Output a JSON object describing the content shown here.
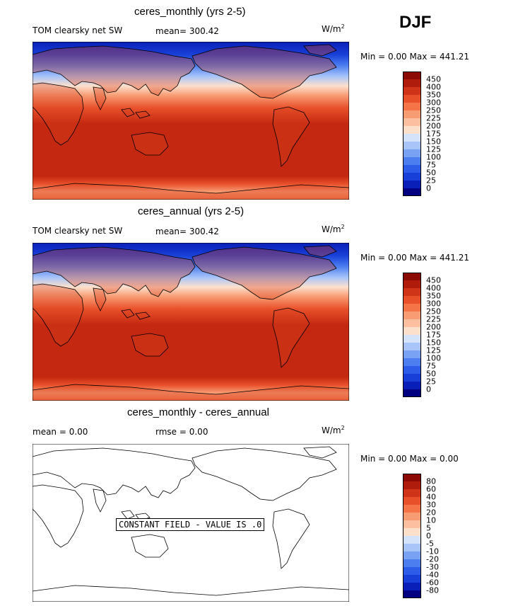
{
  "season": "DJF",
  "panels": [
    {
      "title": "ceres_monthly (yrs 2-5)",
      "variable": "TOM clearsky net SW",
      "mean_label": "mean= 300.42",
      "units": "W/m",
      "units_sup": "2",
      "minmax": "Min =    0.00 Max = 441.21",
      "colorbar_labels": [
        "450",
        "400",
        "350",
        "300",
        "250",
        "225",
        "200",
        "175",
        "150",
        "125",
        "100",
        "75",
        "50",
        "25",
        "0"
      ]
    },
    {
      "title": "ceres_annual (yrs 2-5)",
      "variable": "TOM clearsky net SW",
      "mean_label": "mean= 300.42",
      "units": "W/m",
      "units_sup": "2",
      "minmax": "Min =    0.00 Max = 441.21",
      "colorbar_labels": [
        "450",
        "400",
        "350",
        "300",
        "250",
        "225",
        "200",
        "175",
        "150",
        "125",
        "100",
        "75",
        "50",
        "25",
        "0"
      ]
    },
    {
      "title": "ceres_monthly - ceres_annual",
      "mean_label": "mean =    0.00",
      "rmse_label": "rmse =    0.00",
      "units": "W/m",
      "units_sup": "2",
      "minmax": "Min =    0.00 Max =    0.00",
      "constant_field": "CONSTANT FIELD - VALUE IS .0",
      "colorbar_labels": [
        "80",
        "60",
        "40",
        "30",
        "20",
        "10",
        "5",
        "0",
        "-5",
        "-10",
        "-20",
        "-30",
        "-40",
        "-60",
        "-80"
      ]
    }
  ],
  "colors": {
    "scale": [
      "#000080",
      "#0a1fb8",
      "#1840d8",
      "#2c5ce8",
      "#4c7ef0",
      "#7aa2f4",
      "#a8c4f8",
      "#d4e2fa",
      "#fde0cc",
      "#fcc0a0",
      "#f89c74",
      "#f47448",
      "#e8502a",
      "#d03418",
      "#b01c0c",
      "#8c0a04"
    ],
    "diverging": [
      "#000080",
      "#0a1fb8",
      "#1840d8",
      "#2c5ce8",
      "#4c7ef0",
      "#7aa2f4",
      "#a8c4f8",
      "#d4e2fa",
      "#fde0cc",
      "#fcc0a0",
      "#f89c74",
      "#f47448",
      "#e8502a",
      "#d03418",
      "#b01c0c",
      "#8c0a04"
    ]
  }
}
